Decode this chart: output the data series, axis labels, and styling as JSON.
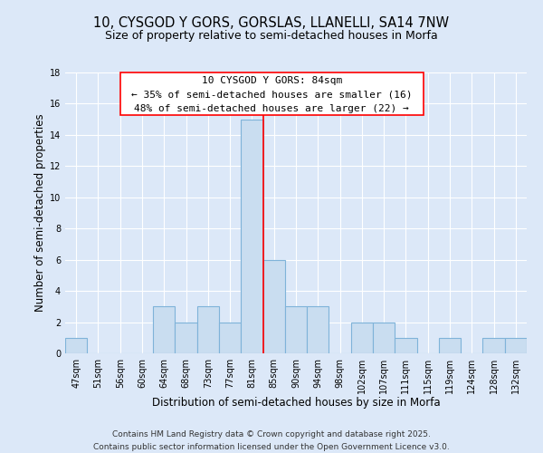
{
  "title": "10, CYSGOD Y GORS, GORSLAS, LLANELLI, SA14 7NW",
  "subtitle": "Size of property relative to semi-detached houses in Morfa",
  "xlabel": "Distribution of semi-detached houses by size in Morfa",
  "ylabel": "Number of semi-detached properties",
  "categories": [
    "47sqm",
    "51sqm",
    "56sqm",
    "60sqm",
    "64sqm",
    "68sqm",
    "73sqm",
    "77sqm",
    "81sqm",
    "85sqm",
    "90sqm",
    "94sqm",
    "98sqm",
    "102sqm",
    "107sqm",
    "111sqm",
    "115sqm",
    "119sqm",
    "124sqm",
    "128sqm",
    "132sqm"
  ],
  "values": [
    1,
    0,
    0,
    0,
    3,
    2,
    3,
    2,
    15,
    6,
    3,
    3,
    0,
    2,
    2,
    1,
    0,
    1,
    0,
    1,
    1
  ],
  "bar_color": "#c9ddf0",
  "bar_edge_color": "#7fb3d9",
  "vline_x_index": 8.5,
  "ylim": [
    0,
    18
  ],
  "yticks": [
    0,
    2,
    4,
    6,
    8,
    10,
    12,
    14,
    16,
    18
  ],
  "annotation_title": "10 CYSGOD Y GORS: 84sqm",
  "annotation_line1": "← 35% of semi-detached houses are smaller (16)",
  "annotation_line2": "48% of semi-detached houses are larger (22) →",
  "footer_line1": "Contains HM Land Registry data © Crown copyright and database right 2025.",
  "footer_line2": "Contains public sector information licensed under the Open Government Licence v3.0.",
  "bg_color": "#dce8f8",
  "plot_bg_color": "#dce8f8",
  "grid_color": "#ffffff",
  "title_fontsize": 10.5,
  "subtitle_fontsize": 9,
  "axis_label_fontsize": 8.5,
  "tick_fontsize": 7,
  "annotation_fontsize": 8,
  "footer_fontsize": 6.5
}
